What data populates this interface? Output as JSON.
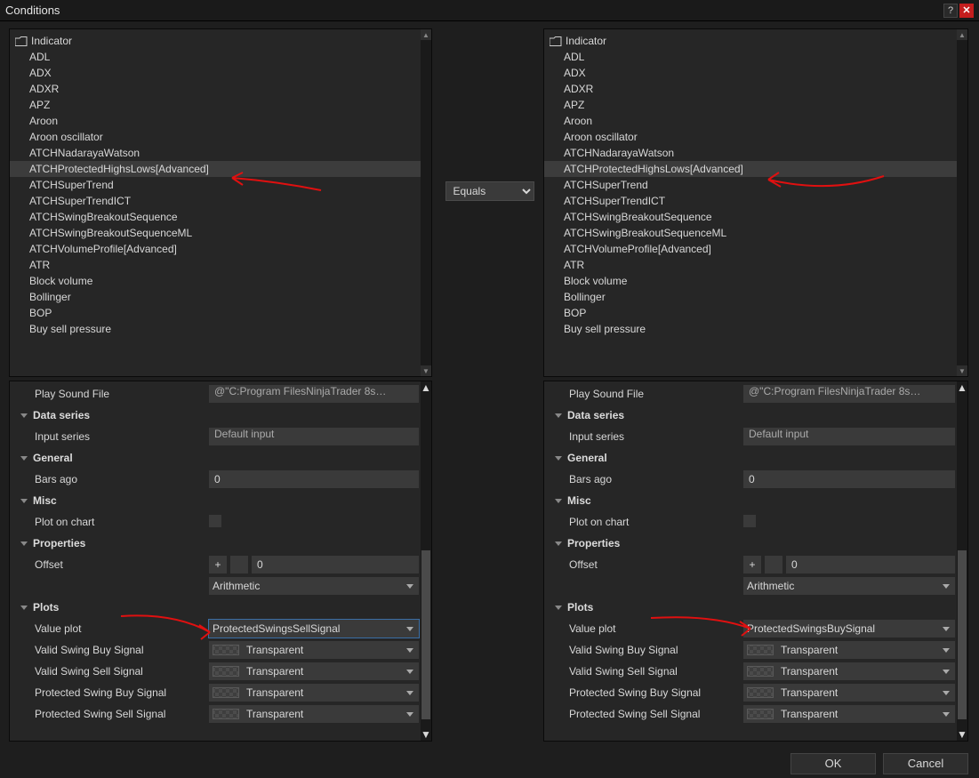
{
  "window": {
    "title": "Conditions"
  },
  "middle": {
    "operator": "Equals"
  },
  "indicator_root": "Indicator",
  "indicators": [
    "ADL",
    "ADX",
    "ADXR",
    "APZ",
    "Aroon",
    "Aroon oscillator",
    "ATCHNadarayaWatson",
    "ATCHProtectedHighsLows[Advanced]",
    "ATCHSuperTrend",
    "ATCHSuperTrendICT",
    "ATCHSwingBreakoutSequence",
    "ATCHSwingBreakoutSequenceML",
    "ATCHVolumeProfile[Advanced]",
    "ATR",
    "Block volume",
    "Bollinger",
    "BOP",
    "Buy sell pressure"
  ],
  "selected_index": 7,
  "left": {
    "play_sound_label": "Play Sound File",
    "play_sound_value": "@\"C:Program FilesNinjaTrader 8s…",
    "section_data": "Data series",
    "input_series_label": "Input series",
    "input_series_value": "Default input",
    "section_general": "General",
    "bars_ago_label": "Bars ago",
    "bars_ago_value": "0",
    "section_misc": "Misc",
    "plot_on_chart_label": "Plot on chart",
    "section_properties": "Properties",
    "offset_label": "Offset",
    "offset_plus": "+",
    "offset_value": "0",
    "offset_mode": "Arithmetic",
    "section_plots": "Plots",
    "value_plot_label": "Value plot",
    "value_plot_value": "ProtectedSwingsSellSignal",
    "signals": [
      {
        "label": "Valid Swing Buy Signal",
        "color": "Transparent"
      },
      {
        "label": "Valid Swing Sell Signal",
        "color": "Transparent"
      },
      {
        "label": "Protected Swing Buy Signal",
        "color": "Transparent"
      },
      {
        "label": "Protected Swing Sell Signal",
        "color": "Transparent"
      }
    ]
  },
  "right": {
    "play_sound_label": "Play Sound File",
    "play_sound_value": "@\"C:Program FilesNinjaTrader 8s…",
    "section_data": "Data series",
    "input_series_label": "Input series",
    "input_series_value": "Default input",
    "section_general": "General",
    "bars_ago_label": "Bars ago",
    "bars_ago_value": "0",
    "section_misc": "Misc",
    "plot_on_chart_label": "Plot on chart",
    "section_properties": "Properties",
    "offset_label": "Offset",
    "offset_plus": "+",
    "offset_value": "0",
    "offset_mode": "Arithmetic",
    "section_plots": "Plots",
    "value_plot_label": "Value plot",
    "value_plot_value": "ProtectedSwingsBuySignal",
    "signals": [
      {
        "label": "Valid Swing Buy Signal",
        "color": "Transparent"
      },
      {
        "label": "Valid Swing Sell Signal",
        "color": "Transparent"
      },
      {
        "label": "Protected Swing Buy Signal",
        "color": "Transparent"
      },
      {
        "label": "Protected Swing Sell Signal",
        "color": "Transparent"
      }
    ]
  },
  "footer": {
    "ok": "OK",
    "cancel": "Cancel"
  },
  "annotation_color": "#e01010"
}
